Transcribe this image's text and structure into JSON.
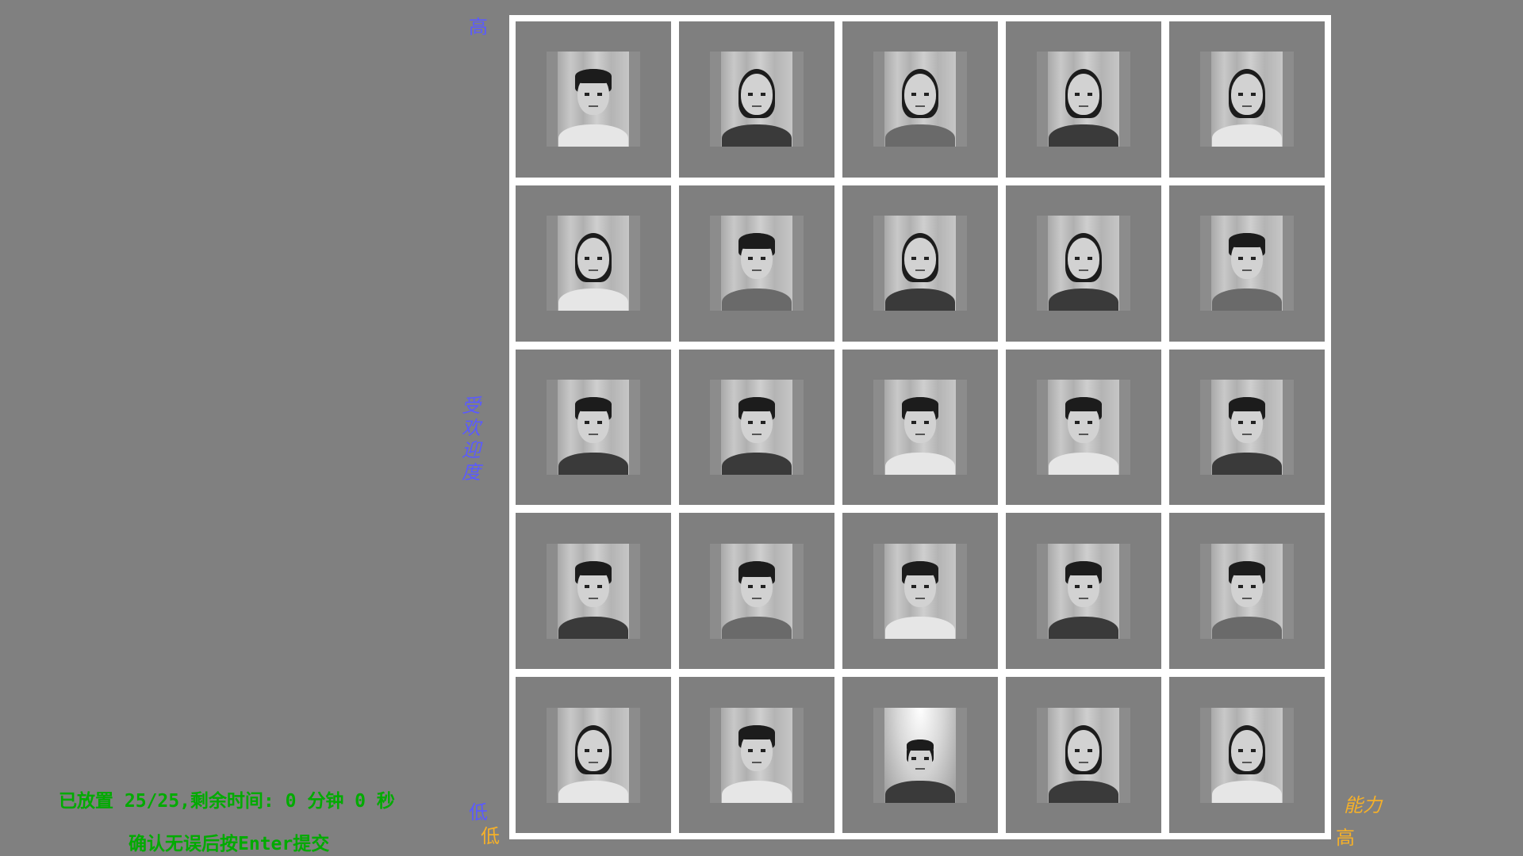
{
  "axes": {
    "y_high": "高",
    "y_low": "低",
    "y_title": "受欢迎度",
    "x_low": "低",
    "x_high": "高",
    "x_title": "能力"
  },
  "colors": {
    "background": "#808080",
    "grid_lines": "#ffffff",
    "cell": "#7f7f7f",
    "y_axis_label": "#5a5aff",
    "x_axis_label": "#f5b029",
    "status_text": "#00ab00"
  },
  "grid": {
    "rows": 5,
    "columns": 5,
    "cells": [
      {
        "photo": "face-photo-male"
      },
      {
        "photo": "face-photo-female"
      },
      {
        "photo": "face-photo-female"
      },
      {
        "photo": "face-photo-female"
      },
      {
        "photo": "face-photo-female"
      },
      {
        "photo": "face-photo-female"
      },
      {
        "photo": "face-photo-male"
      },
      {
        "photo": "face-photo-female"
      },
      {
        "photo": "face-photo-female"
      },
      {
        "photo": "face-photo-male"
      },
      {
        "photo": "face-photo-male"
      },
      {
        "photo": "face-photo-male"
      },
      {
        "photo": "face-photo-male"
      },
      {
        "photo": "face-photo-male"
      },
      {
        "photo": "face-photo-male"
      },
      {
        "photo": "face-photo-male"
      },
      {
        "photo": "face-photo-male"
      },
      {
        "photo": "face-photo-male"
      },
      {
        "photo": "face-photo-male"
      },
      {
        "photo": "face-photo-male"
      },
      {
        "photo": "face-photo-female"
      },
      {
        "photo": "face-photo-male"
      },
      {
        "photo": "face-photo-male"
      },
      {
        "photo": "face-photo-female"
      },
      {
        "photo": "face-photo-female"
      }
    ]
  },
  "status": {
    "placed_line": "已放置 25/25,剩余时间: 0 分钟 0 秒",
    "instruction_line": "确认无误后按Enter提交"
  }
}
